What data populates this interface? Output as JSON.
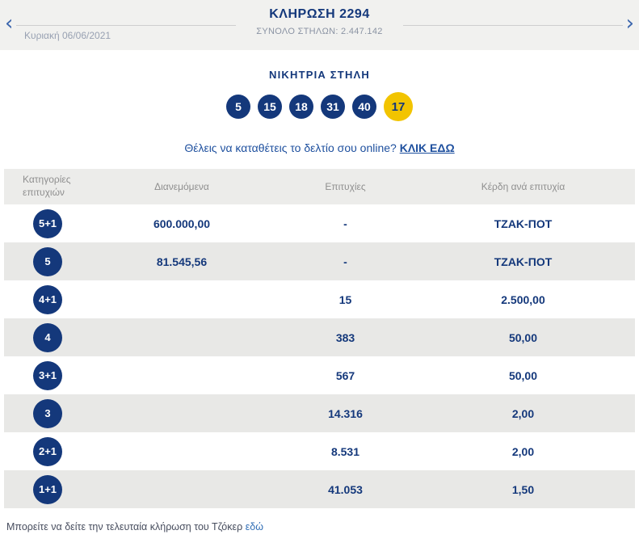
{
  "header": {
    "date": "Κυριακή 06/06/2021",
    "title": "ΚΛΗΡΩΣΗ 2294",
    "subtitle": "ΣΥΝΟΛΟ ΣΤΗΛΩΝ: 2.447.142",
    "icons": {
      "prev": "‹",
      "next": "›"
    }
  },
  "winning": {
    "label": "ΝΙΚΗΤΡΙΑ ΣΤΗΛΗ",
    "numbers": [
      "5",
      "15",
      "18",
      "31",
      "40"
    ],
    "joker": "17"
  },
  "online": {
    "text": "Θέλεις να καταθέτεις το δελτίο σου online?",
    "link": "ΚΛΙΚ ΕΔΩ"
  },
  "table": {
    "headers": {
      "category": "Κατηγορίες επιτυχιών",
      "distributed": "Διανεμόμενα",
      "successes": "Επιτυχίες",
      "winnings": "Κέρδη ανά επιτυχία"
    },
    "rows": [
      {
        "category": "5+1",
        "distributed": "600.000,00",
        "successes": "-",
        "winnings": "ΤΖΑΚ-ΠΟΤ"
      },
      {
        "category": "5",
        "distributed": "81.545,56",
        "successes": "-",
        "winnings": "ΤΖΑΚ-ΠΟΤ"
      },
      {
        "category": "4+1",
        "distributed": "",
        "successes": "15",
        "winnings": "2.500,00"
      },
      {
        "category": "4",
        "distributed": "",
        "successes": "383",
        "winnings": "50,00"
      },
      {
        "category": "3+1",
        "distributed": "",
        "successes": "567",
        "winnings": "50,00"
      },
      {
        "category": "3",
        "distributed": "",
        "successes": "14.316",
        "winnings": "2,00"
      },
      {
        "category": "2+1",
        "distributed": "",
        "successes": "8.531",
        "winnings": "2,00"
      },
      {
        "category": "1+1",
        "distributed": "",
        "successes": "41.053",
        "winnings": "1,50"
      }
    ]
  },
  "footer": {
    "text": "Μπορείτε να δείτε την τελευταία κλήρωση του Τζόκερ",
    "link": "εδώ"
  },
  "colors": {
    "navy": "#14387b",
    "joker_yellow": "#f2c400",
    "link_blue": "#2f6db5",
    "bar_gray": "#f1f1ef",
    "row_gray": "#e8e8e6"
  }
}
